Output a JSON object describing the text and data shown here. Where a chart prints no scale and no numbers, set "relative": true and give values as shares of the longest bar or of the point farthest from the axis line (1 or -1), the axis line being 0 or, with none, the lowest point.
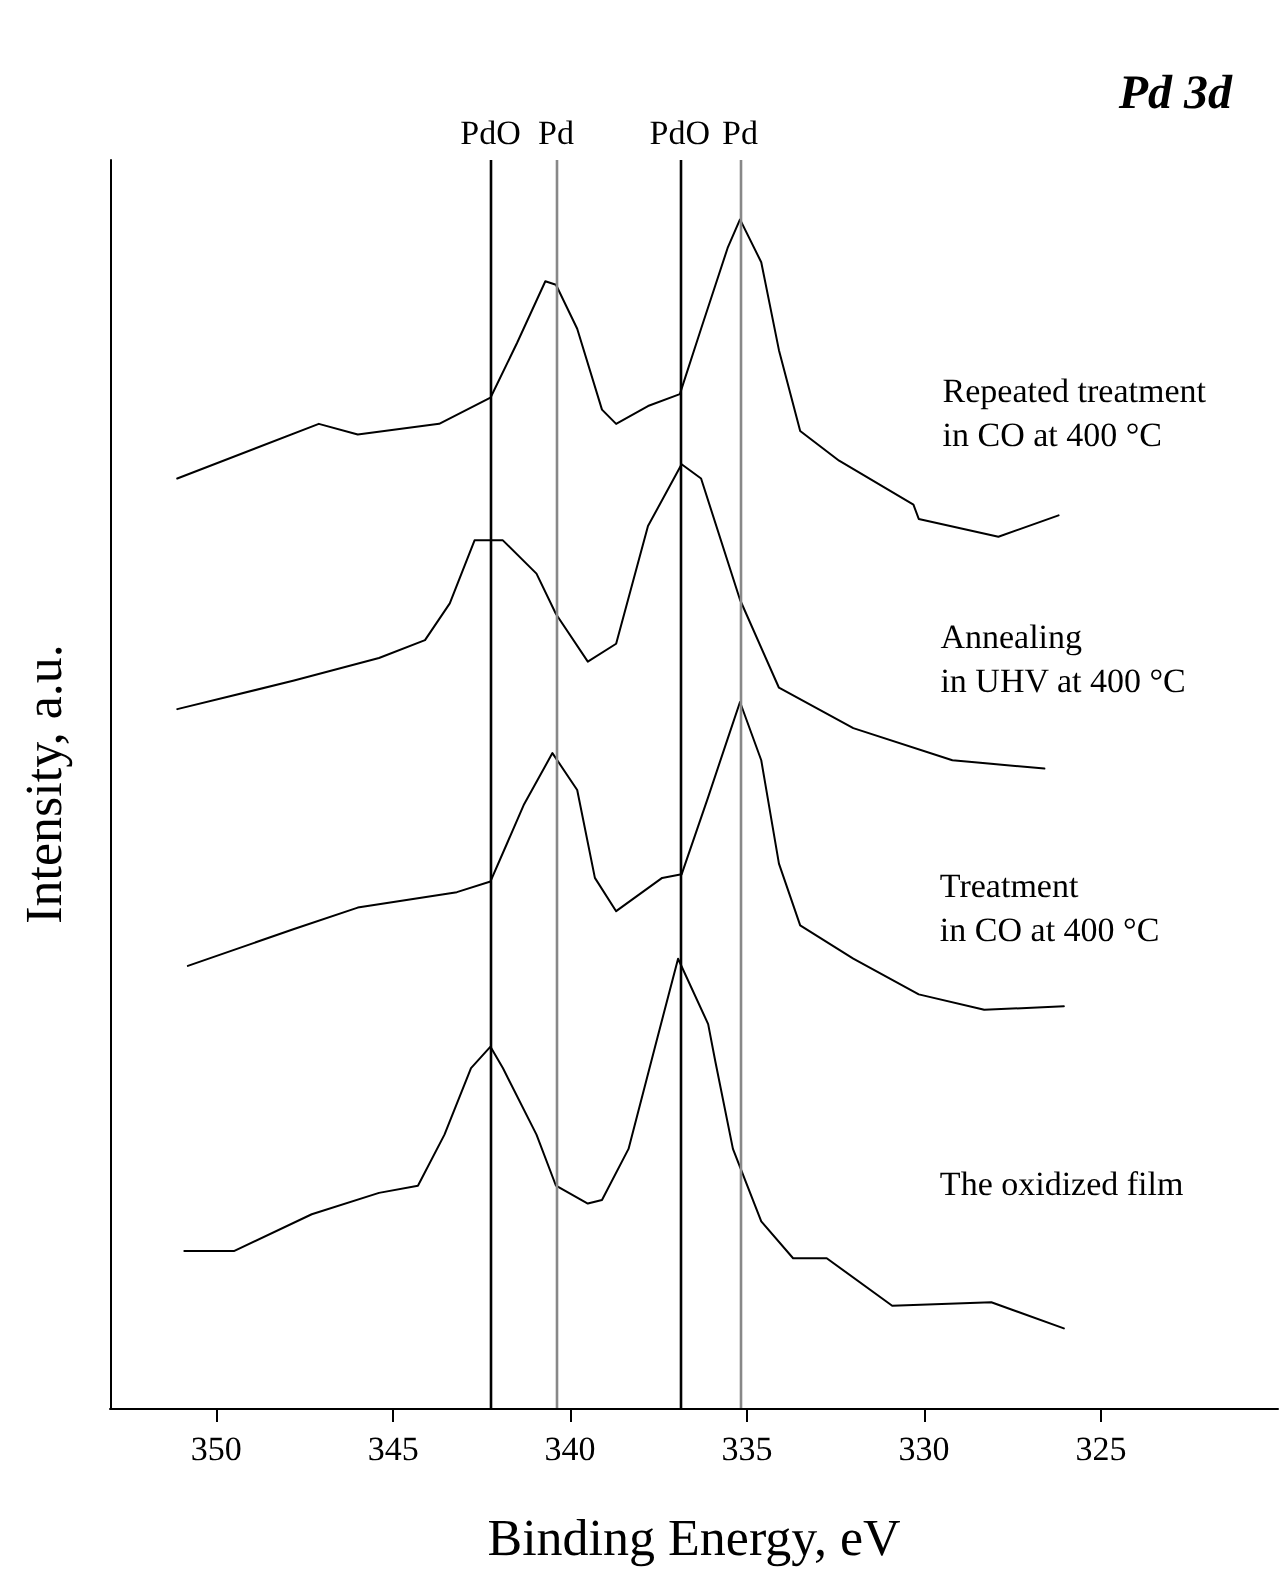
{
  "chart_data": {
    "type": "line",
    "title": "Pd 3d",
    "xlabel": "Binding Energy, eV",
    "ylabel": "Intensity, a.u.",
    "relative": true,
    "xlim": [
      353,
      320
    ],
    "xticks": [
      350,
      345,
      340,
      335,
      330,
      325
    ],
    "grid": false,
    "legend": false,
    "marker": "none",
    "line_style": "solid",
    "series": [
      {
        "name": "Repeated treatment\nin CO at 400 °C",
        "color": "#000000",
        "x": [
          351.1,
          347.1,
          346.0,
          343.7,
          342.25,
          341.5,
          340.7,
          340.4,
          339.8,
          339.1,
          338.7,
          337.8,
          336.9,
          336.3,
          335.55,
          335.2,
          334.6,
          334.1,
          333.5,
          332.4,
          330.3,
          330.15,
          327.9,
          326.2
        ],
        "values": [
          0.782,
          0.828,
          0.819,
          0.828,
          0.85,
          0.896,
          0.948,
          0.945,
          0.908,
          0.84,
          0.828,
          0.843,
          0.853,
          0.908,
          0.976,
          1,
          0.964,
          0.89,
          0.822,
          0.797,
          0.76,
          0.748,
          0.733,
          0.751
        ]
      },
      {
        "name": "Annealing\nin UHV at 400 °C",
        "color": "#000000",
        "x": [
          351.1,
          347.8,
          345.4,
          344.1,
          343.4,
          342.7,
          341.9,
          340.95,
          340.4,
          339.5,
          338.7,
          337.8,
          336.85,
          336.3,
          335.2,
          334.1,
          332.0,
          329.2,
          326.6
        ],
        "values": [
          0.588,
          0.612,
          0.631,
          0.646,
          0.677,
          0.73,
          0.73,
          0.702,
          0.668,
          0.628,
          0.643,
          0.742,
          0.794,
          0.782,
          0.68,
          0.606,
          0.572,
          0.545,
          0.538
        ]
      },
      {
        "name": "Treatment\nin CO at 400 °C",
        "color": "#000000",
        "x": [
          350.8,
          347.8,
          346.0,
          343.2,
          342.25,
          341.3,
          340.5,
          339.8,
          339.3,
          338.7,
          337.4,
          336.85,
          336.1,
          335.55,
          335.2,
          334.6,
          334.1,
          333.5,
          332.0,
          330.15,
          328.3,
          326.05
        ],
        "values": [
          0.372,
          0.403,
          0.421,
          0.434,
          0.443,
          0.508,
          0.551,
          0.52,
          0.446,
          0.418,
          0.446,
          0.449,
          0.514,
          0.563,
          0.594,
          0.545,
          0.458,
          0.406,
          0.378,
          0.348,
          0.335,
          0.338
        ]
      },
      {
        "name": "The oxidized film",
        "color": "#000000",
        "x": [
          350.9,
          349.5,
          347.3,
          345.4,
          344.3,
          343.55,
          342.8,
          342.25,
          341.9,
          340.95,
          340.4,
          339.5,
          339.1,
          338.35,
          337.6,
          336.95,
          336.1,
          335.9,
          335.4,
          334.6,
          333.7,
          332.75,
          330.9,
          328.1,
          326.05
        ],
        "values": [
          0.132,
          0.132,
          0.163,
          0.181,
          0.187,
          0.23,
          0.286,
          0.304,
          0.286,
          0.23,
          0.187,
          0.172,
          0.175,
          0.218,
          0.304,
          0.378,
          0.323,
          0.292,
          0.218,
          0.157,
          0.126,
          0.126,
          0.086,
          0.089,
          0.067
        ]
      }
    ],
    "ref_lines": [
      {
        "axis": "x",
        "value": 342.25,
        "label": "PdO",
        "color": "#000000"
      },
      {
        "axis": "x",
        "value": 340.4,
        "label": "Pd",
        "color": "#888888"
      },
      {
        "axis": "x",
        "value": 336.9,
        "label": "PdO",
        "color": "#000000"
      },
      {
        "axis": "x",
        "value": 335.2,
        "label": "Pd",
        "color": "#888888"
      }
    ]
  }
}
